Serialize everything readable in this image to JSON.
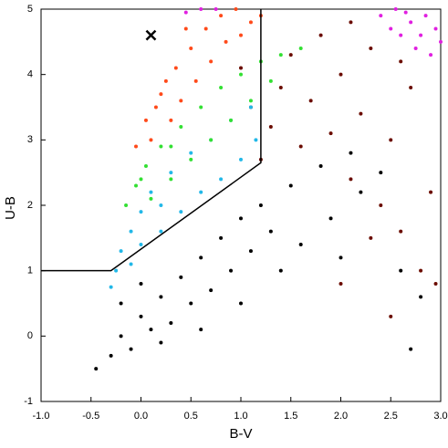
{
  "chart_data": {
    "type": "scatter",
    "x_label": "B-V",
    "y_label": "U-B",
    "xlim": [
      -1.0,
      3.0
    ],
    "xticks": [
      {
        "value": -1.0,
        "label": "-1.0"
      },
      -0.5,
      {
        "value": 0,
        "label": "0.0"
      },
      0.5,
      {
        "value": 1,
        "label": "1.0"
      },
      1.5,
      {
        "value": 2,
        "label": "2.0"
      },
      2.5,
      {
        "value": 3,
        "label": "3.0"
      }
    ],
    "ylim": [
      -1,
      5
    ],
    "yticks": [
      -1,
      0,
      1,
      2,
      3,
      4,
      5
    ],
    "grid": false,
    "series": [
      {
        "marker": "dot",
        "color": "#000000",
        "x": [
          -0.45,
          -0.3,
          -0.2,
          -0.1,
          0,
          0.1,
          0.2,
          0.3,
          0.4,
          0.5,
          0.6,
          0.7,
          0.8,
          0.9,
          1.0,
          1.1,
          1.2,
          1.3,
          1.5,
          1.6,
          1.8,
          1.9,
          2.1,
          2.2,
          2.4,
          2.6,
          2.8,
          1.4,
          1.0,
          0.2,
          0.6,
          -0.2,
          0.0,
          2.0,
          2.7
        ],
        "y": [
          -0.5,
          -0.3,
          0,
          -0.2,
          0.3,
          0.1,
          0.6,
          0.2,
          0.9,
          0.5,
          1.2,
          0.7,
          1.5,
          1.0,
          1.8,
          1.3,
          2.0,
          1.6,
          2.3,
          1.4,
          2.6,
          1.8,
          2.8,
          2.2,
          2.5,
          1.0,
          0.6,
          1.0,
          0.5,
          -0.1,
          0.1,
          0.5,
          0.8,
          1.2,
          -0.2
        ]
      },
      {
        "marker": "dot",
        "color": "#6b0c00",
        "x": [
          1.2,
          1.3,
          1.4,
          1.5,
          1.6,
          1.7,
          1.8,
          1.9,
          2.0,
          2.1,
          2.2,
          2.3,
          2.4,
          2.5,
          2.6,
          2.7,
          2.8,
          2.9,
          2.95,
          2.3,
          1.1,
          1.0,
          2.1,
          2.6,
          2.0,
          2.5
        ],
        "y": [
          2.7,
          3.2,
          3.8,
          4.3,
          2.9,
          3.6,
          4.6,
          3.1,
          4.0,
          2.4,
          3.4,
          4.4,
          2.0,
          3.0,
          1.6,
          3.8,
          1.0,
          2.2,
          0.8,
          1.5,
          3.5,
          4.1,
          4.8,
          4.2,
          0.8,
          0.3
        ]
      },
      {
        "marker": "dot",
        "color": "#22b8e8",
        "x": [
          -0.3,
          -0.25,
          -0.2,
          -0.1,
          -0.1,
          0,
          0,
          0.1,
          0.2,
          0.3,
          0.4,
          0.5,
          0.6,
          0.7,
          0.8,
          0.9,
          1.0,
          1.1,
          1.15,
          0.2
        ],
        "y": [
          0.75,
          1.0,
          1.3,
          1.6,
          1.1,
          1.9,
          1.4,
          2.2,
          1.6,
          2.5,
          1.9,
          2.8,
          2.2,
          3.0,
          2.4,
          3.3,
          2.7,
          3.5,
          3.0,
          2.0
        ]
      },
      {
        "marker": "dot",
        "color": "#33e033",
        "x": [
          -0.15,
          -0.05,
          0.05,
          0.1,
          0.2,
          0.3,
          0.4,
          0.5,
          0.6,
          0.7,
          0.8,
          0.9,
          1.0,
          1.1,
          1.2,
          1.4,
          1.6,
          1.3,
          0.3,
          0.0
        ],
        "y": [
          2.0,
          2.3,
          2.6,
          2.1,
          2.9,
          2.4,
          3.2,
          2.7,
          3.5,
          3.0,
          3.8,
          3.3,
          4.0,
          3.6,
          4.2,
          4.3,
          4.4,
          3.9,
          2.9,
          2.4
        ]
      },
      {
        "marker": "dot",
        "color": "#ff4a1a",
        "x": [
          -0.05,
          0.05,
          0.1,
          0.2,
          0.3,
          0.35,
          0.4,
          0.5,
          0.55,
          0.65,
          0.7,
          0.8,
          0.85,
          0.95,
          1.0,
          1.1,
          1.2,
          0.25,
          0.45,
          0.15
        ],
        "y": [
          2.9,
          3.3,
          3.0,
          3.7,
          3.3,
          4.1,
          3.6,
          4.4,
          3.9,
          4.7,
          4.2,
          4.9,
          4.5,
          5.0,
          4.6,
          4.8,
          4.9,
          3.9,
          4.7,
          3.5
        ]
      },
      {
        "marker": "dot",
        "color": "#e020e0",
        "x": [
          0.45,
          0.6,
          0.75,
          2.4,
          2.5,
          2.55,
          2.6,
          2.7,
          2.75,
          2.8,
          2.85,
          2.9,
          2.95,
          3.0,
          2.65
        ],
        "y": [
          4.95,
          5.0,
          5.0,
          4.9,
          4.7,
          5.0,
          4.6,
          4.8,
          4.4,
          4.6,
          4.9,
          4.3,
          4.7,
          4.5,
          4.95
        ]
      },
      {
        "marker": "line",
        "color": "#000000",
        "x": [
          -1.0,
          -0.3,
          1.2,
          1.2
        ],
        "y": [
          1,
          1,
          2.65,
          5
        ]
      },
      {
        "marker": "x",
        "color": "#000000",
        "x": [
          0.1
        ],
        "y": [
          4.6
        ]
      }
    ]
  }
}
